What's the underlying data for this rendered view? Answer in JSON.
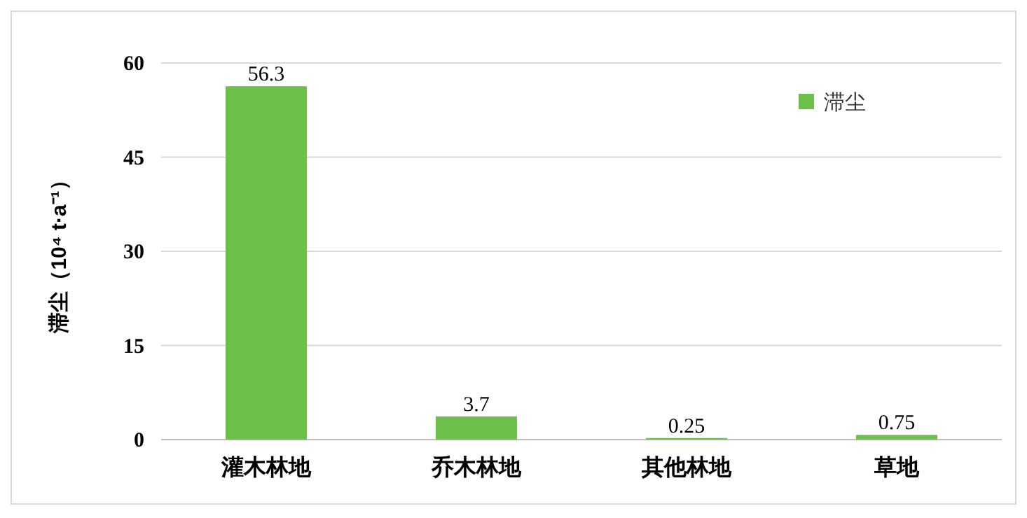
{
  "chart_data": {
    "type": "bar",
    "ylabel": "滞尘（10⁴ t·a⁻¹）",
    "categories": [
      "灌木林地",
      "乔木林地",
      "其他林地",
      "草地"
    ],
    "series": [
      {
        "name": "滞尘",
        "color": "#6cc04a",
        "values": [
          56.3,
          3.7,
          0.25,
          0.75
        ]
      }
    ],
    "ylim": [
      0,
      60
    ],
    "yticks": [
      0,
      15,
      30,
      45,
      60
    ],
    "grid": "y",
    "legend": "top right",
    "data_labels": true
  }
}
